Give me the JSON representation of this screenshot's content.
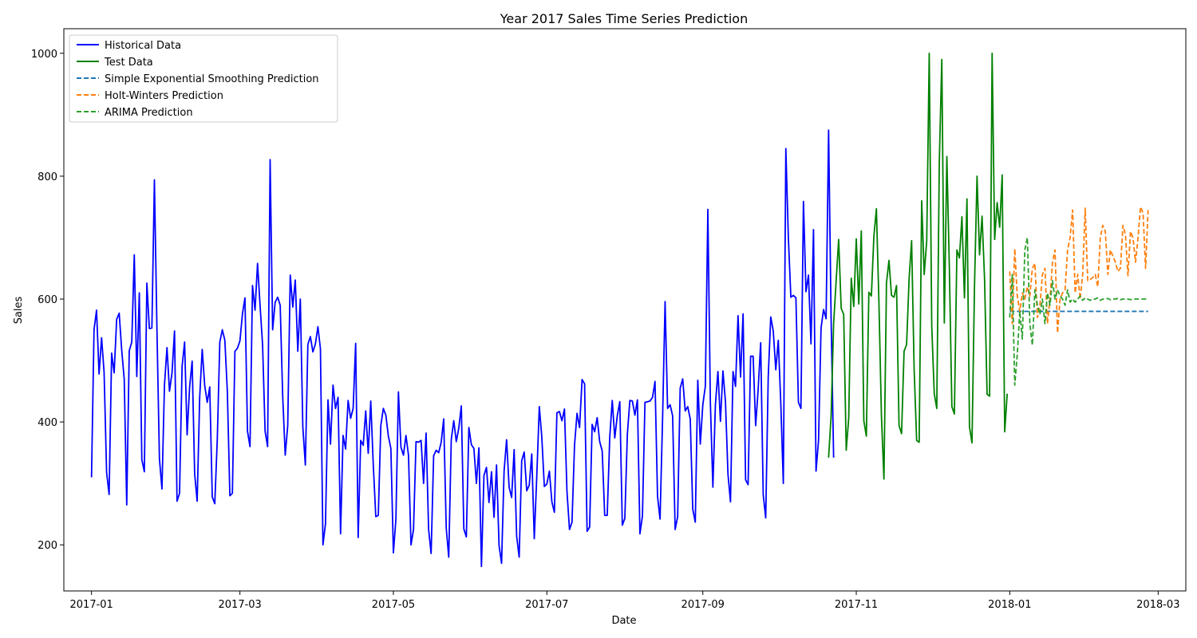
{
  "chart_data": {
    "type": "line",
    "title": "Year 2017 Sales Time Series Prediction",
    "xlabel": "Date",
    "ylabel": "Sales",
    "xlim": [
      "2016-12-21",
      "2018-03-12"
    ],
    "ylim": [
      125,
      1040
    ],
    "x_ticks": [
      "2017-01",
      "2017-03",
      "2017-05",
      "2017-07",
      "2017-09",
      "2017-11",
      "2018-01",
      "2018-03"
    ],
    "y_ticks": [
      200,
      400,
      600,
      800,
      1000
    ],
    "grid": false,
    "legend_position": "top-left",
    "series": [
      {
        "name": "Historical Data",
        "color": "#0000ff",
        "dash": "solid",
        "start_date": "2017-01-01",
        "step_days": 1,
        "values": [
          310,
          550,
          582,
          478,
          537,
          481,
          318,
          282,
          512,
          480,
          567,
          577,
          517,
          470,
          265,
          516,
          530,
          672,
          474,
          610,
          339,
          319,
          626,
          552,
          553,
          794,
          553,
          340,
          291,
          460,
          521,
          450,
          480,
          548,
          271,
          284,
          490,
          530,
          379,
          457,
          499,
          316,
          271,
          440,
          518,
          459,
          432,
          457,
          278,
          267,
          372,
          530,
          550,
          533,
          449,
          280,
          284,
          515,
          520,
          532,
          576,
          602,
          385,
          360,
          622,
          582,
          658,
          590,
          526,
          385,
          360,
          827,
          550,
          595,
          603,
          590,
          442,
          346,
          394,
          639,
          587,
          631,
          515,
          600,
          392,
          330,
          526,
          539,
          514,
          527,
          555,
          519,
          200,
          234,
          436,
          364,
          460,
          422,
          440,
          218,
          378,
          356,
          435,
          406,
          422,
          528,
          212,
          370,
          362,
          418,
          349,
          434,
          331,
          246,
          248,
          394,
          422,
          411,
          377,
          357,
          187,
          242,
          449,
          359,
          346,
          378,
          346,
          200,
          225,
          368,
          367,
          370,
          300,
          382,
          225,
          186,
          345,
          354,
          350,
          367,
          405,
          228,
          180,
          371,
          402,
          368,
          390,
          426,
          226,
          213,
          391,
          363,
          357,
          300,
          358,
          165,
          313,
          326,
          269,
          319,
          245,
          330,
          199,
          170,
          320,
          371,
          294,
          277,
          355,
          214,
          180,
          337,
          351,
          288,
          297,
          348,
          210,
          312,
          425,
          375,
          295,
          299,
          320,
          270,
          253,
          415,
          417,
          402,
          421,
          287,
          225,
          237,
          362,
          414,
          391,
          469,
          462,
          222,
          229,
          396,
          384,
          407,
          368,
          353,
          248,
          248,
          375,
          435,
          374,
          410,
          433,
          232,
          243,
          380,
          435,
          434,
          411,
          436,
          218,
          247,
          432,
          433,
          434,
          440,
          466,
          279,
          242,
          405,
          596,
          422,
          428,
          410,
          225,
          246,
          455,
          470,
          418,
          425,
          405,
          258,
          237,
          468,
          364,
          428,
          458,
          746,
          432,
          294,
          428,
          482,
          401,
          483,
          433,
          315,
          270,
          482,
          458,
          573,
          473,
          576,
          306,
          298,
          507,
          507,
          394,
          453,
          529,
          282,
          244,
          473,
          571,
          548,
          485,
          533,
          430,
          300,
          845,
          700,
          603,
          606,
          602,
          432,
          422,
          759,
          612,
          639,
          527,
          713,
          320,
          370,
          553,
          583,
          568,
          875,
          568,
          342
        ]
      },
      {
        "name": "Test Data",
        "color": "#008000",
        "dash": "solid",
        "start_date": "2017-10-21",
        "step_days": 1,
        "values": [
          342,
          410,
          560,
          630,
          697,
          585,
          575,
          354,
          406,
          634,
          588,
          698,
          592,
          711,
          402,
          377,
          611,
          605,
          702,
          747,
          595,
          410,
          307,
          626,
          663,
          606,
          603,
          622,
          394,
          381,
          515,
          526,
          633,
          695,
          486,
          370,
          367,
          760,
          640,
          695,
          1000,
          556,
          446,
          422,
          822,
          990,
          561,
          832,
          651,
          425,
          413,
          680,
          667,
          734,
          602,
          763,
          392,
          366,
          622,
          800,
          672,
          735,
          632,
          445,
          442,
          1000,
          697,
          757,
          717,
          802,
          384,
          446
        ]
      },
      {
        "name": "Simple Exponential Smoothing Prediction",
        "color": "#1f77b4",
        "dash": "dashed",
        "start_date": "2018-01-01",
        "step_days": 1,
        "values": [
          580,
          580,
          580,
          580,
          580,
          580,
          580,
          580,
          580,
          580,
          580,
          580,
          580,
          580,
          580,
          580,
          580,
          580,
          580,
          580,
          580,
          580,
          580,
          580,
          580,
          580,
          580,
          580,
          580,
          580,
          580,
          580,
          580,
          580,
          580,
          580,
          580,
          580,
          580,
          580,
          580,
          580,
          580,
          580,
          580,
          580,
          580,
          580,
          580,
          580,
          580,
          580,
          580,
          580,
          580,
          580
        ]
      },
      {
        "name": "Holt-Winters Prediction",
        "color": "#ff7f0e",
        "dash": "dashed",
        "start_date": "2018-01-01",
        "step_days": 1,
        "values": [
          645,
          560,
          682,
          605,
          580,
          610,
          600,
          620,
          605,
          650,
          658,
          570,
          590,
          640,
          650,
          560,
          600,
          660,
          680,
          545,
          600,
          610,
          615,
          680,
          700,
          745,
          610,
          640,
          600,
          640,
          748,
          630,
          632,
          635,
          640,
          620,
          700,
          720,
          710,
          640,
          680,
          670,
          660,
          645,
          650,
          720,
          705,
          638,
          710,
          700,
          660,
          700,
          750,
          740,
          650,
          745
        ]
      },
      {
        "name": "ARIMA Prediction",
        "color": "#2ca02c",
        "dash": "dashed",
        "start_date": "2018-01-01",
        "step_days": 1,
        "values": [
          570,
          640,
          460,
          510,
          580,
          535,
          680,
          700,
          560,
          525,
          615,
          590,
          575,
          600,
          560,
          610,
          590,
          630,
          600,
          615,
          605,
          600,
          590,
          615,
          595,
          600,
          595,
          600,
          605,
          598,
          602,
          600,
          598,
          600,
          600,
          602,
          598,
          600,
          600,
          601,
          599,
          600,
          600,
          601,
          599,
          600,
          600,
          600,
          599,
          600,
          600,
          600,
          600,
          600,
          600,
          600
        ]
      }
    ]
  }
}
